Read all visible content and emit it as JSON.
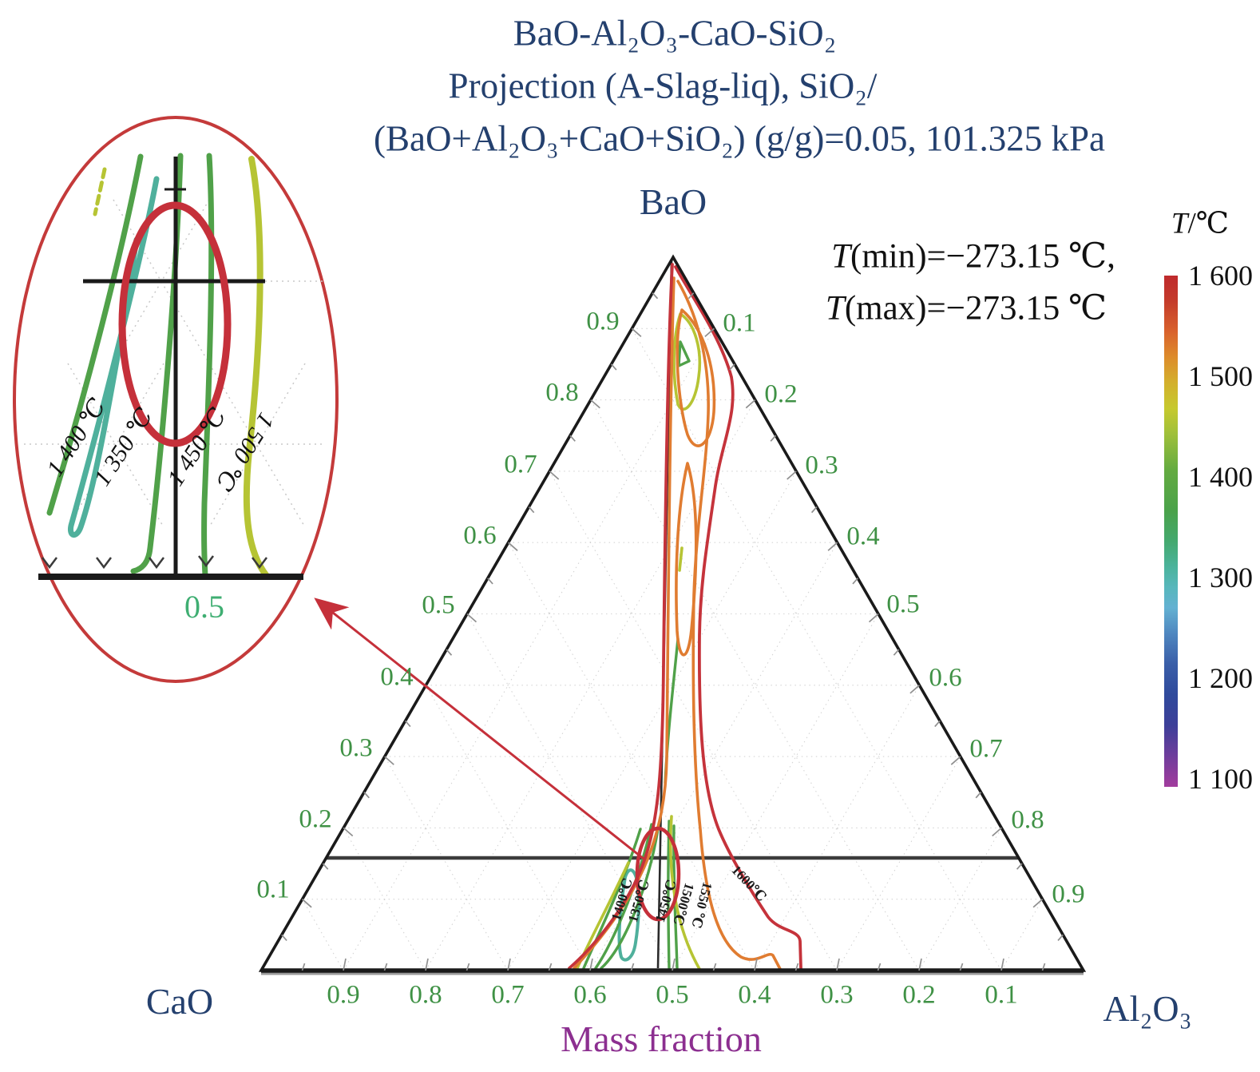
{
  "title": {
    "lines": [
      "BaO-Al₂O₃-CaO-SiO₂",
      "Projection (A-Slag-liq), SiO₂/",
      "(BaO+Al₂O₃+CaO+SiO₂) (g/g)=0.05, 101.325 kPa"
    ]
  },
  "temperature_note": {
    "symbol": "T",
    "min_rest": "(min)=−273.15 ℃,",
    "max_rest": "(max)=−273.15 ℃"
  },
  "colorbar": {
    "title_symbol": "T",
    "title_rest": "/℃",
    "ticks": [
      "1 600",
      "1 500",
      "1 400",
      "1 300",
      "1 200",
      "1 100"
    ]
  },
  "ternary": {
    "apex_label": "BaO",
    "bottom_left_label": "CaO",
    "bottom_right_label": "Al₂O₃",
    "axis_title": "Mass fraction",
    "left_ticks": [
      "0.9",
      "0.8",
      "0.7",
      "0.6",
      "0.5",
      "0.4",
      "0.3",
      "0.2",
      "0.1"
    ],
    "right_ticks": [
      "0.1",
      "0.2",
      "0.3",
      "0.4",
      "0.5",
      "0.6",
      "0.7",
      "0.8",
      "0.9"
    ],
    "bottom_ticks": [
      "0.9",
      "0.8",
      "0.7",
      "0.6",
      "0.5",
      "0.4",
      "0.3",
      "0.2",
      "0.1"
    ],
    "contour_labels": [
      "1400℃",
      "1350℃",
      "1450℃",
      "1500℃",
      "1550 ℃",
      "1600℃"
    ]
  },
  "inset": {
    "contour_labels": [
      "1 400 ℃",
      "1 350 ℃",
      "1 450 ℃",
      "1 500 ℃"
    ],
    "axis_tick": "0.5"
  },
  "chart_data": {
    "type": "contour-ternary",
    "title": "BaO-Al₂O₃-CaO-SiO₂ Projection (A-Slag-liq), SiO₂/(BaO+Al₂O₃+CaO+SiO₂) (g/g)=0.05, 101.325 kPa",
    "components": {
      "top": "BaO",
      "bottom_left": "CaO",
      "bottom_right": "Al₂O₃"
    },
    "axis_label": "Mass fraction",
    "axis_tick_values": [
      0.1,
      0.2,
      0.3,
      0.4,
      0.5,
      0.6,
      0.7,
      0.8,
      0.9
    ],
    "pressure_kpa": 101.325,
    "sio2_mass_ratio": 0.05,
    "t_min_c": -273.15,
    "t_max_c": -273.15,
    "colorbar": {
      "label": "T/℃",
      "min": 1100,
      "max": 1600,
      "ticks": [
        1600,
        1500,
        1400,
        1300,
        1200,
        1100
      ]
    },
    "contours": [
      {
        "level_c": 1350,
        "color": "#4fb09c"
      },
      {
        "level_c": 1400,
        "color": "#50a149"
      },
      {
        "level_c": 1450,
        "color": "#6fae45"
      },
      {
        "level_c": 1500,
        "color": "#b6c434"
      },
      {
        "level_c": 1550,
        "color": "#e07c31"
      },
      {
        "level_c": 1600,
        "color": "#c5333b"
      }
    ],
    "contour_band": "Liquidus contours run in a narrow band from the BaO apex down to the base near bottom mass fraction 0.5; coolest (teal 1350 ℃) closed loop near base, hottest (red 1600 ℃) outermost",
    "inset": {
      "magnified_bottom_tick": 0.5,
      "contour_labels_c": [
        1400,
        1350,
        1450,
        1500
      ]
    },
    "legend_position": "right",
    "grid": "faint dotted ternary grid at 0.1 intervals"
  }
}
